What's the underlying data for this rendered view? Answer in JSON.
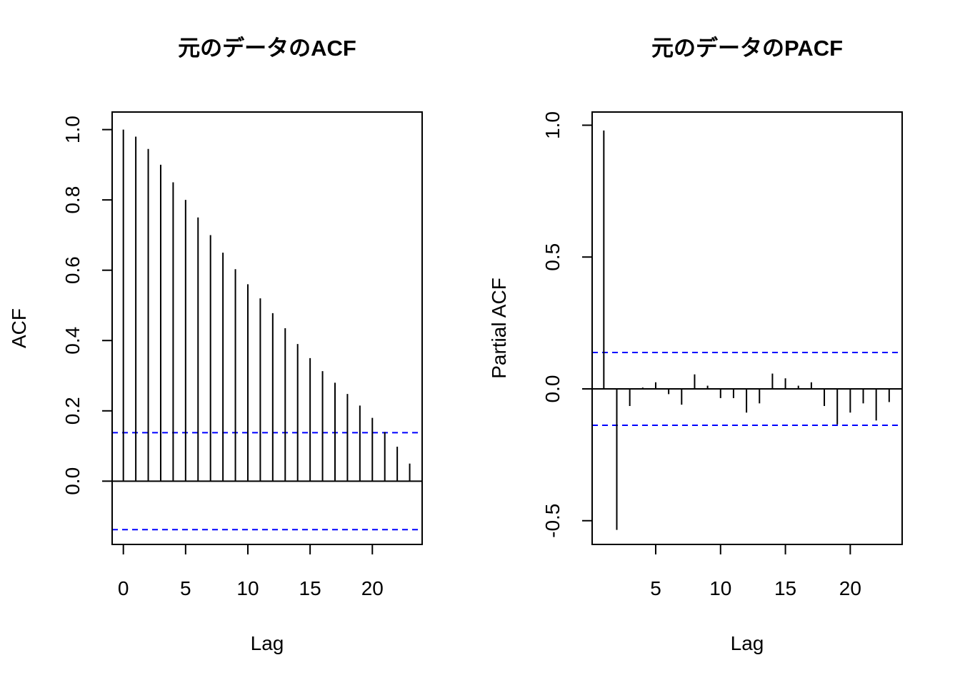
{
  "chart_data": [
    {
      "type": "bar",
      "title": "元のデータのACF",
      "xlabel": "Lag",
      "ylabel": "ACF",
      "xlim": [
        -0.9,
        24
      ],
      "ylim": [
        -0.18,
        1.05
      ],
      "xticks": [
        "0",
        "5",
        "10",
        "15",
        "20"
      ],
      "yticks": [
        "0.0",
        "0.2",
        "0.4",
        "0.6",
        "0.8",
        "1.0"
      ],
      "x": [
        0,
        1,
        2,
        3,
        4,
        5,
        6,
        7,
        8,
        9,
        10,
        11,
        12,
        13,
        14,
        15,
        16,
        17,
        18,
        19,
        20,
        21,
        22,
        23
      ],
      "values": [
        1.0,
        0.98,
        0.945,
        0.9,
        0.85,
        0.8,
        0.75,
        0.7,
        0.65,
        0.603,
        0.56,
        0.52,
        0.478,
        0.435,
        0.39,
        0.35,
        0.313,
        0.28,
        0.248,
        0.215,
        0.18,
        0.14,
        0.098,
        0.05
      ],
      "ci": 0.138,
      "ci_color": "#0000ff",
      "grid": false
    },
    {
      "type": "bar",
      "title": "元のデータのPACF",
      "xlabel": "Lag",
      "ylabel": "Partial ACF",
      "xlim": [
        0.1,
        24
      ],
      "ylim": [
        -0.59,
        1.05
      ],
      "xticks": [
        "5",
        "10",
        "15",
        "20"
      ],
      "yticks": [
        "-0.5",
        "0.0",
        "0.5",
        "1.0"
      ],
      "x": [
        1,
        2,
        3,
        4,
        5,
        6,
        7,
        8,
        9,
        10,
        11,
        12,
        13,
        14,
        15,
        16,
        17,
        18,
        19,
        20,
        21,
        22,
        23
      ],
      "values": [
        0.98,
        -0.535,
        -0.065,
        0.005,
        0.025,
        -0.02,
        -0.06,
        0.055,
        0.012,
        -0.035,
        -0.035,
        -0.09,
        -0.055,
        0.058,
        0.04,
        0.012,
        0.025,
        -0.065,
        -0.135,
        -0.09,
        -0.055,
        -0.12,
        -0.05
      ],
      "ci": 0.138,
      "ci_color": "#0000ff",
      "grid": false
    }
  ]
}
